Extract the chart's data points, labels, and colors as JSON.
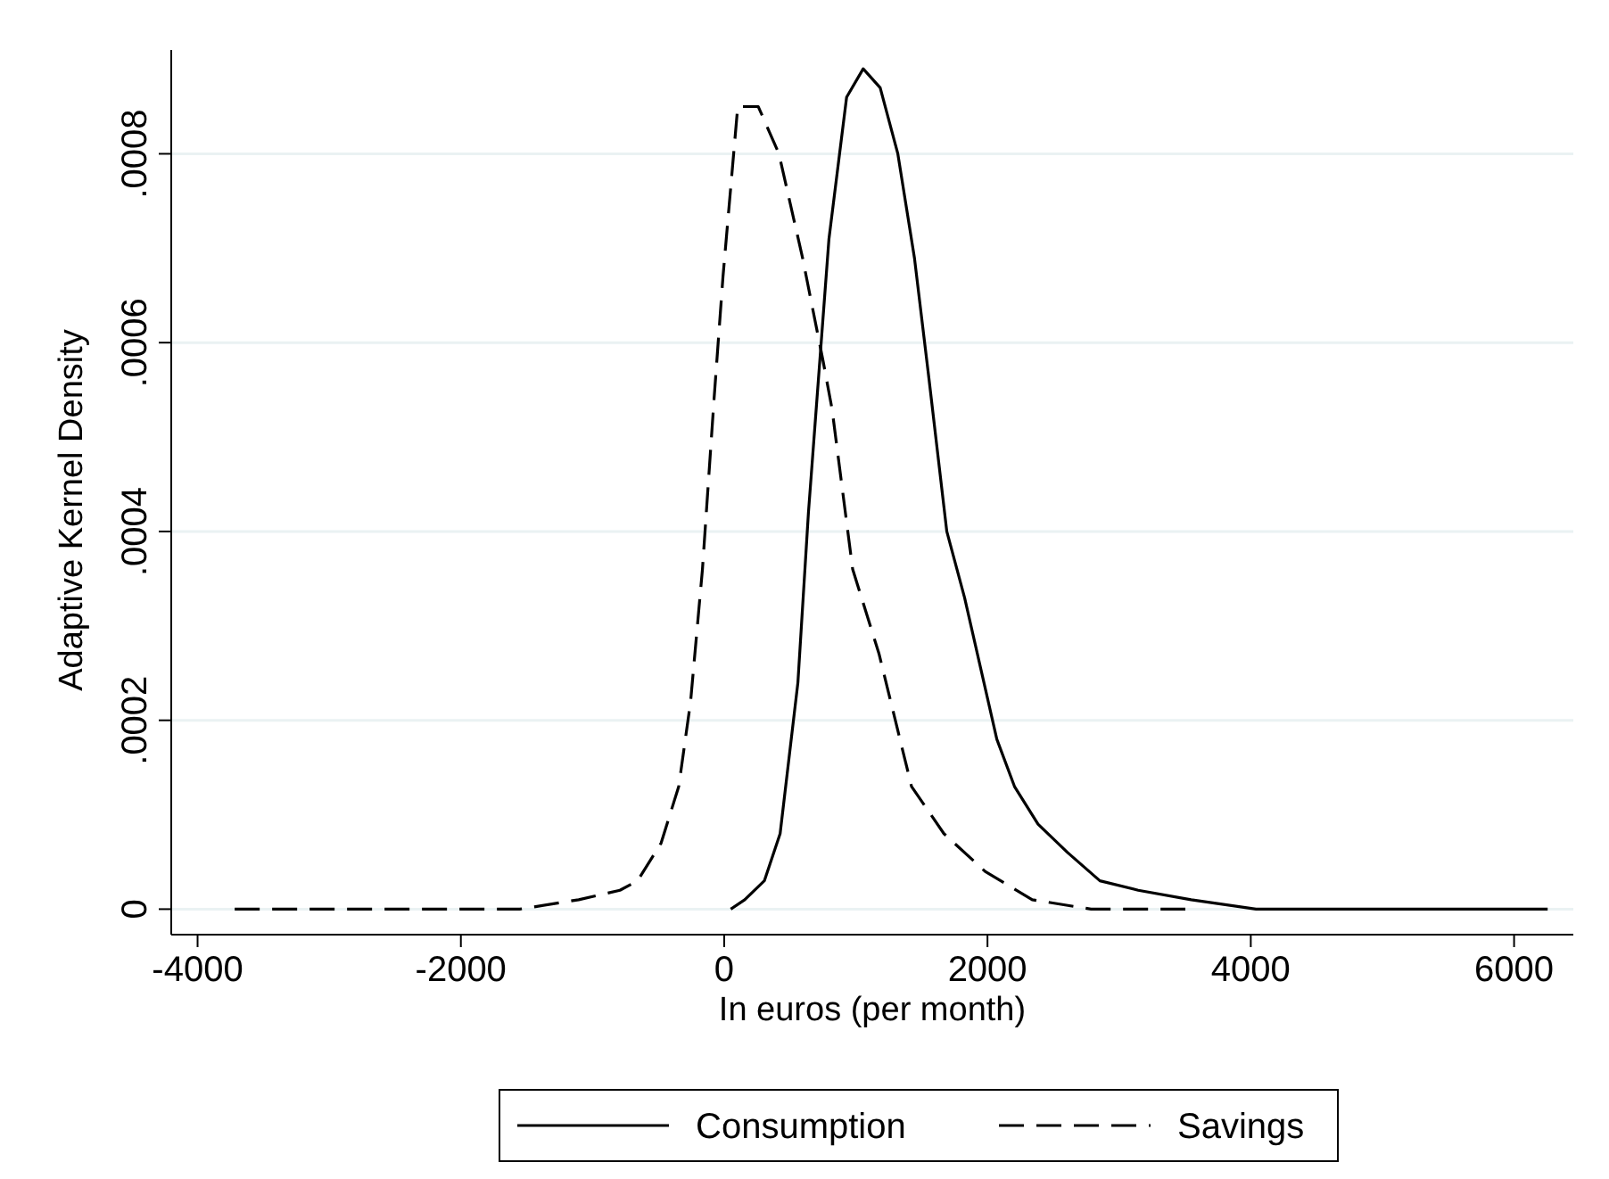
{
  "chart_data": {
    "type": "line",
    "xlabel": "In euros (per month)",
    "ylabel": "Adaptive Kernel Density",
    "xlim": [
      -4200,
      6450
    ],
    "ylim": [
      -2.7e-05,
      0.00091
    ],
    "xticks": [
      -4000,
      -2000,
      0,
      2000,
      4000,
      6000
    ],
    "yticks": [
      0,
      {
        "value": 0.0002,
        "label": ".0002"
      },
      {
        "value": 0.0004,
        "label": ".0004"
      },
      {
        "value": 0.0006,
        "label": ".0006"
      },
      {
        "value": 0.0008,
        "label": ".0008"
      }
    ],
    "grid": "y",
    "legend": "bottom",
    "series": [
      {
        "name": "Consumption",
        "color": "#000000",
        "line_style": "solid",
        "x": [
          50,
          156,
          305,
          425,
          560,
          640,
          796,
          930,
          1056,
          1185,
          1319,
          1445,
          1557,
          1691,
          1826,
          2071,
          2205,
          2384,
          2608,
          2854,
          3145,
          3547,
          4040,
          4800,
          6255
        ],
        "values": [
          0,
          1e-05,
          3e-05,
          8e-05,
          0.00024,
          0.00042,
          0.00071,
          0.00086,
          0.00089,
          0.00087,
          0.0008,
          0.00069,
          0.00056,
          0.0004,
          0.00033,
          0.00018,
          0.00013,
          9e-05,
          6e-05,
          3e-05,
          2e-05,
          1e-05,
          0,
          0,
          0
        ]
      },
      {
        "name": "Savings",
        "color": "#000000",
        "line_style": "dashed",
        "x": [
          -3718,
          -1553,
          -1105,
          -792,
          -658,
          -479,
          -345,
          -255,
          -165,
          -77,
          -9,
          103,
          259,
          416,
          595,
          752,
          819,
          976,
          1177,
          1423,
          1669,
          1982,
          2340,
          2787,
          3503
        ],
        "values": [
          0,
          0,
          1e-05,
          2e-05,
          3e-05,
          7e-05,
          0.00013,
          0.00022,
          0.00036,
          0.00054,
          0.00067,
          0.00085,
          0.00085,
          0.0008,
          0.00069,
          0.00058,
          0.00053,
          0.00036,
          0.00027,
          0.00013,
          8e-05,
          4e-05,
          1e-05,
          0,
          0
        ]
      }
    ]
  }
}
